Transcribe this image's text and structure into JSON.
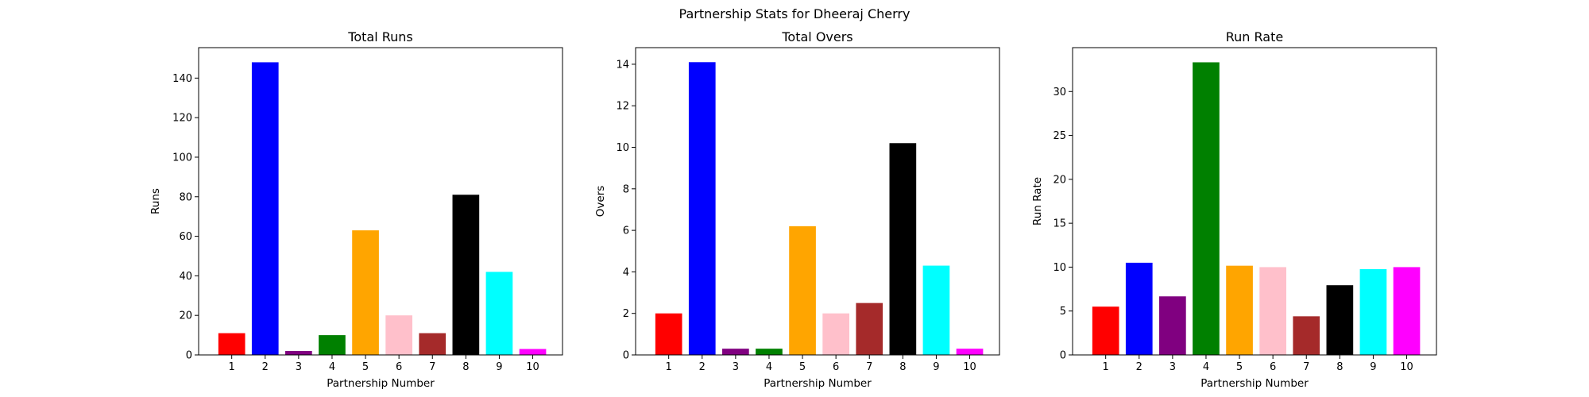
{
  "suptitle": "Partnership Stats for Dheeraj Cherry",
  "chart_data": [
    {
      "type": "bar",
      "title": "Total Runs",
      "xlabel": "Partnership Number",
      "ylabel": "Runs",
      "categories": [
        "1",
        "2",
        "3",
        "4",
        "5",
        "6",
        "7",
        "8",
        "9",
        "10"
      ],
      "values": [
        11,
        148,
        2,
        10,
        63,
        20,
        11,
        81,
        42,
        3
      ],
      "ylim": [
        0,
        155.4
      ],
      "yticks": [
        0,
        20,
        40,
        60,
        80,
        100,
        120,
        140
      ],
      "colors": [
        "#ff0000",
        "#0000ff",
        "#800080",
        "#008000",
        "#ffa500",
        "#ffc0cb",
        "#a52a2a",
        "#000000",
        "#00ffff",
        "#ff00ff"
      ],
      "grid": false
    },
    {
      "type": "bar",
      "title": "Total Overs",
      "xlabel": "Partnership Number",
      "ylabel": "Overs",
      "categories": [
        "1",
        "2",
        "3",
        "4",
        "5",
        "6",
        "7",
        "8",
        "9",
        "10"
      ],
      "values": [
        2,
        14.1,
        0.3,
        0.3,
        6.2,
        2,
        2.5,
        10.2,
        4.3,
        0.3
      ],
      "ylim": [
        0,
        14.8
      ],
      "yticks": [
        0,
        2,
        4,
        6,
        8,
        10,
        12,
        14
      ],
      "colors": [
        "#ff0000",
        "#0000ff",
        "#800080",
        "#008000",
        "#ffa500",
        "#ffc0cb",
        "#a52a2a",
        "#000000",
        "#00ffff",
        "#ff00ff"
      ],
      "grid": false
    },
    {
      "type": "bar",
      "title": "Run Rate",
      "xlabel": "Partnership Number",
      "ylabel": "Run Rate",
      "categories": [
        "1",
        "2",
        "3",
        "4",
        "5",
        "6",
        "7",
        "8",
        "9",
        "10"
      ],
      "values": [
        5.5,
        10.5,
        6.67,
        33.33,
        10.16,
        10.0,
        4.4,
        7.94,
        9.77,
        10.0
      ],
      "ylim": [
        0,
        35.0
      ],
      "yticks": [
        0,
        5,
        10,
        15,
        20,
        25,
        30
      ],
      "colors": [
        "#ff0000",
        "#0000ff",
        "#800080",
        "#008000",
        "#ffa500",
        "#ffc0cb",
        "#a52a2a",
        "#000000",
        "#00ffff",
        "#ff00ff"
      ],
      "grid": false
    }
  ]
}
